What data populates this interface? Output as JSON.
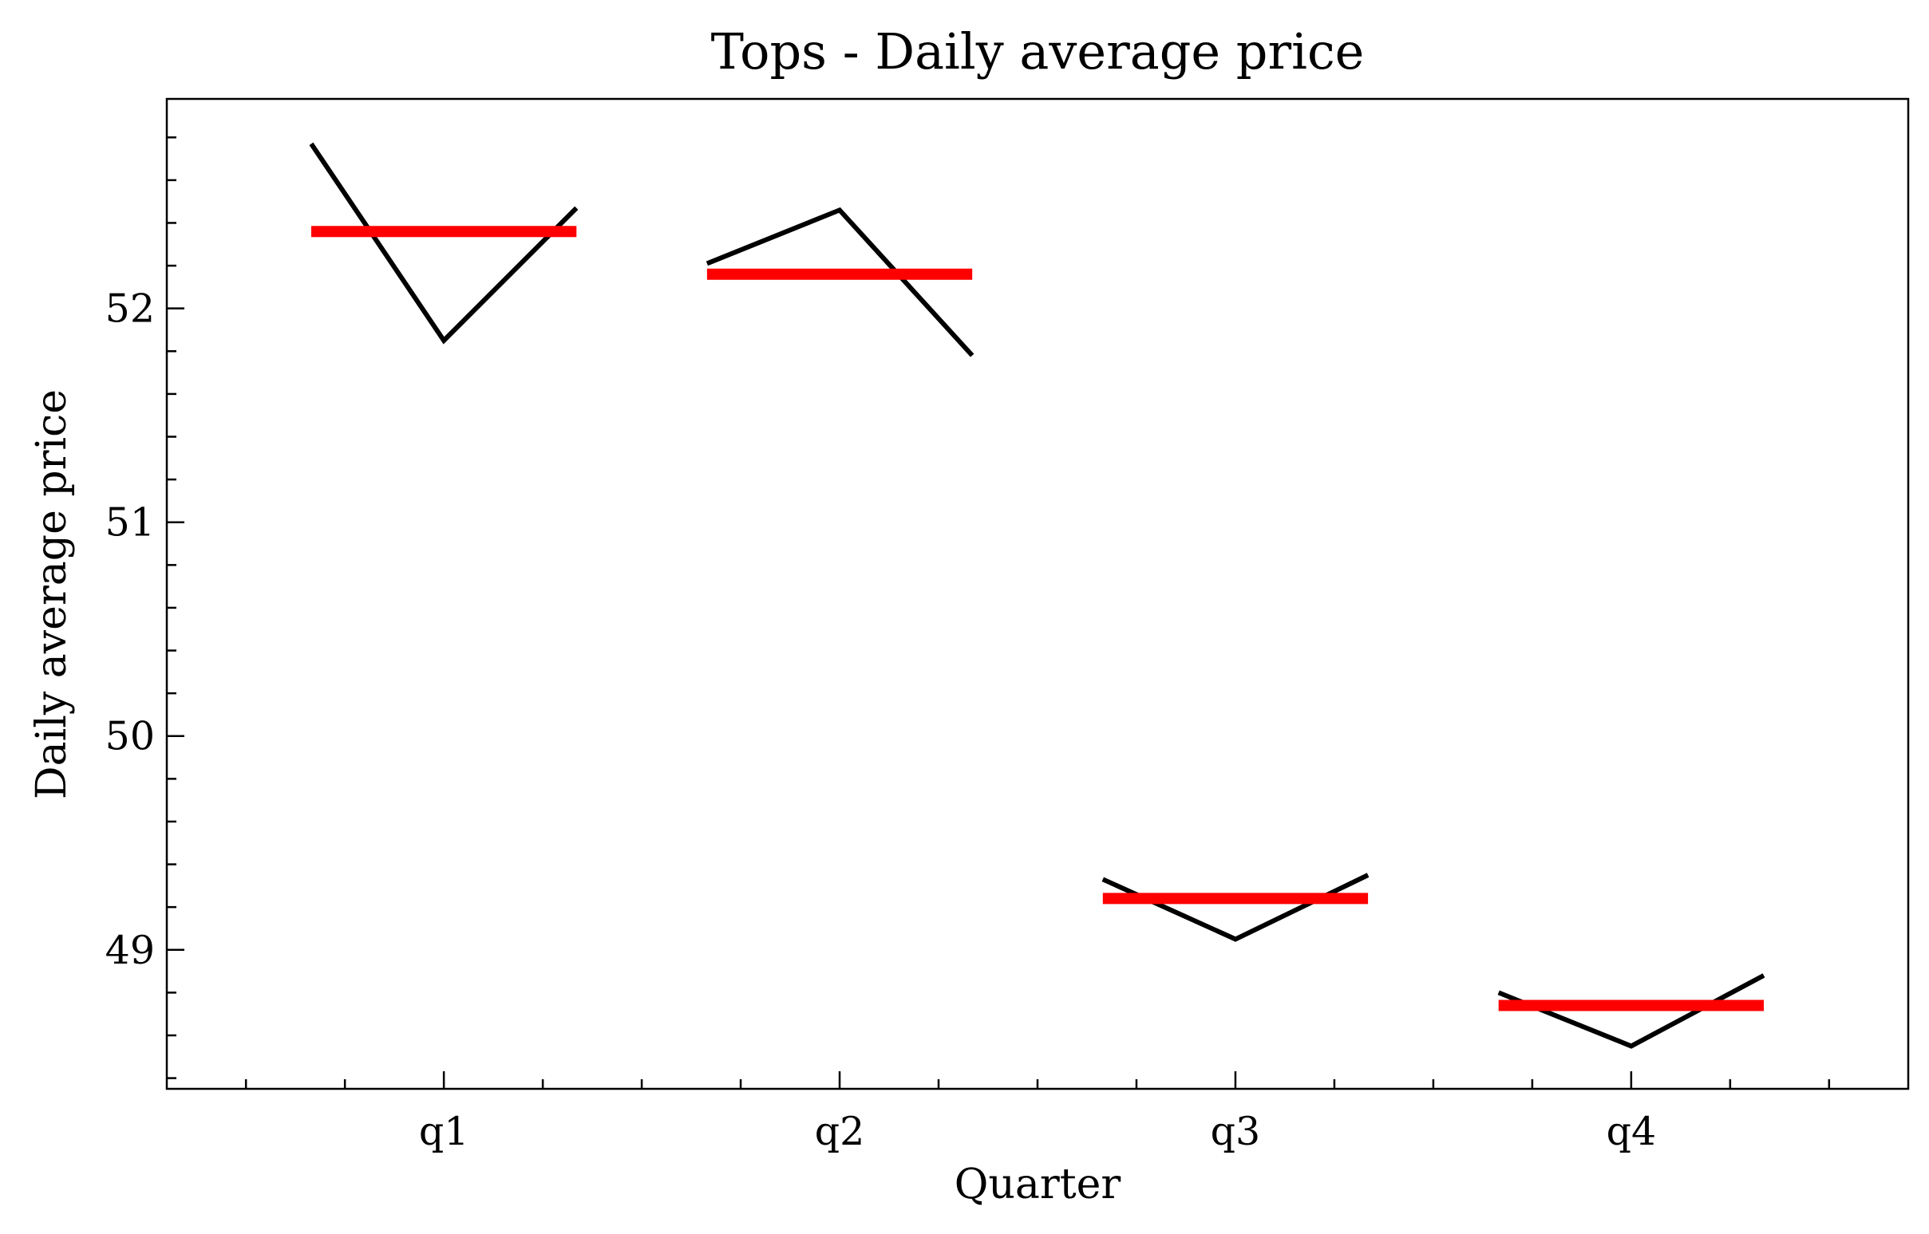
{
  "chart_data": {
    "type": "line",
    "title": "Tops - Daily average price",
    "xlabel": "Quarter",
    "ylabel": "Daily average price",
    "categories": [
      "q1",
      "q2",
      "q3",
      "q4"
    ],
    "ylim": [
      48.35,
      52.98
    ],
    "yticks": [
      49,
      50,
      51,
      52
    ],
    "grid": false,
    "series": [
      {
        "color": "#000000",
        "role": "values",
        "values": [
          [
            52.77,
            51.85,
            52.47
          ],
          [
            52.21,
            52.46,
            51.78
          ],
          [
            49.33,
            49.05,
            49.35
          ],
          [
            48.8,
            48.55,
            48.88
          ]
        ]
      },
      {
        "color": "#ff0000",
        "role": "mean",
        "values": [
          52.36,
          52.16,
          49.24,
          48.74
        ]
      }
    ]
  }
}
